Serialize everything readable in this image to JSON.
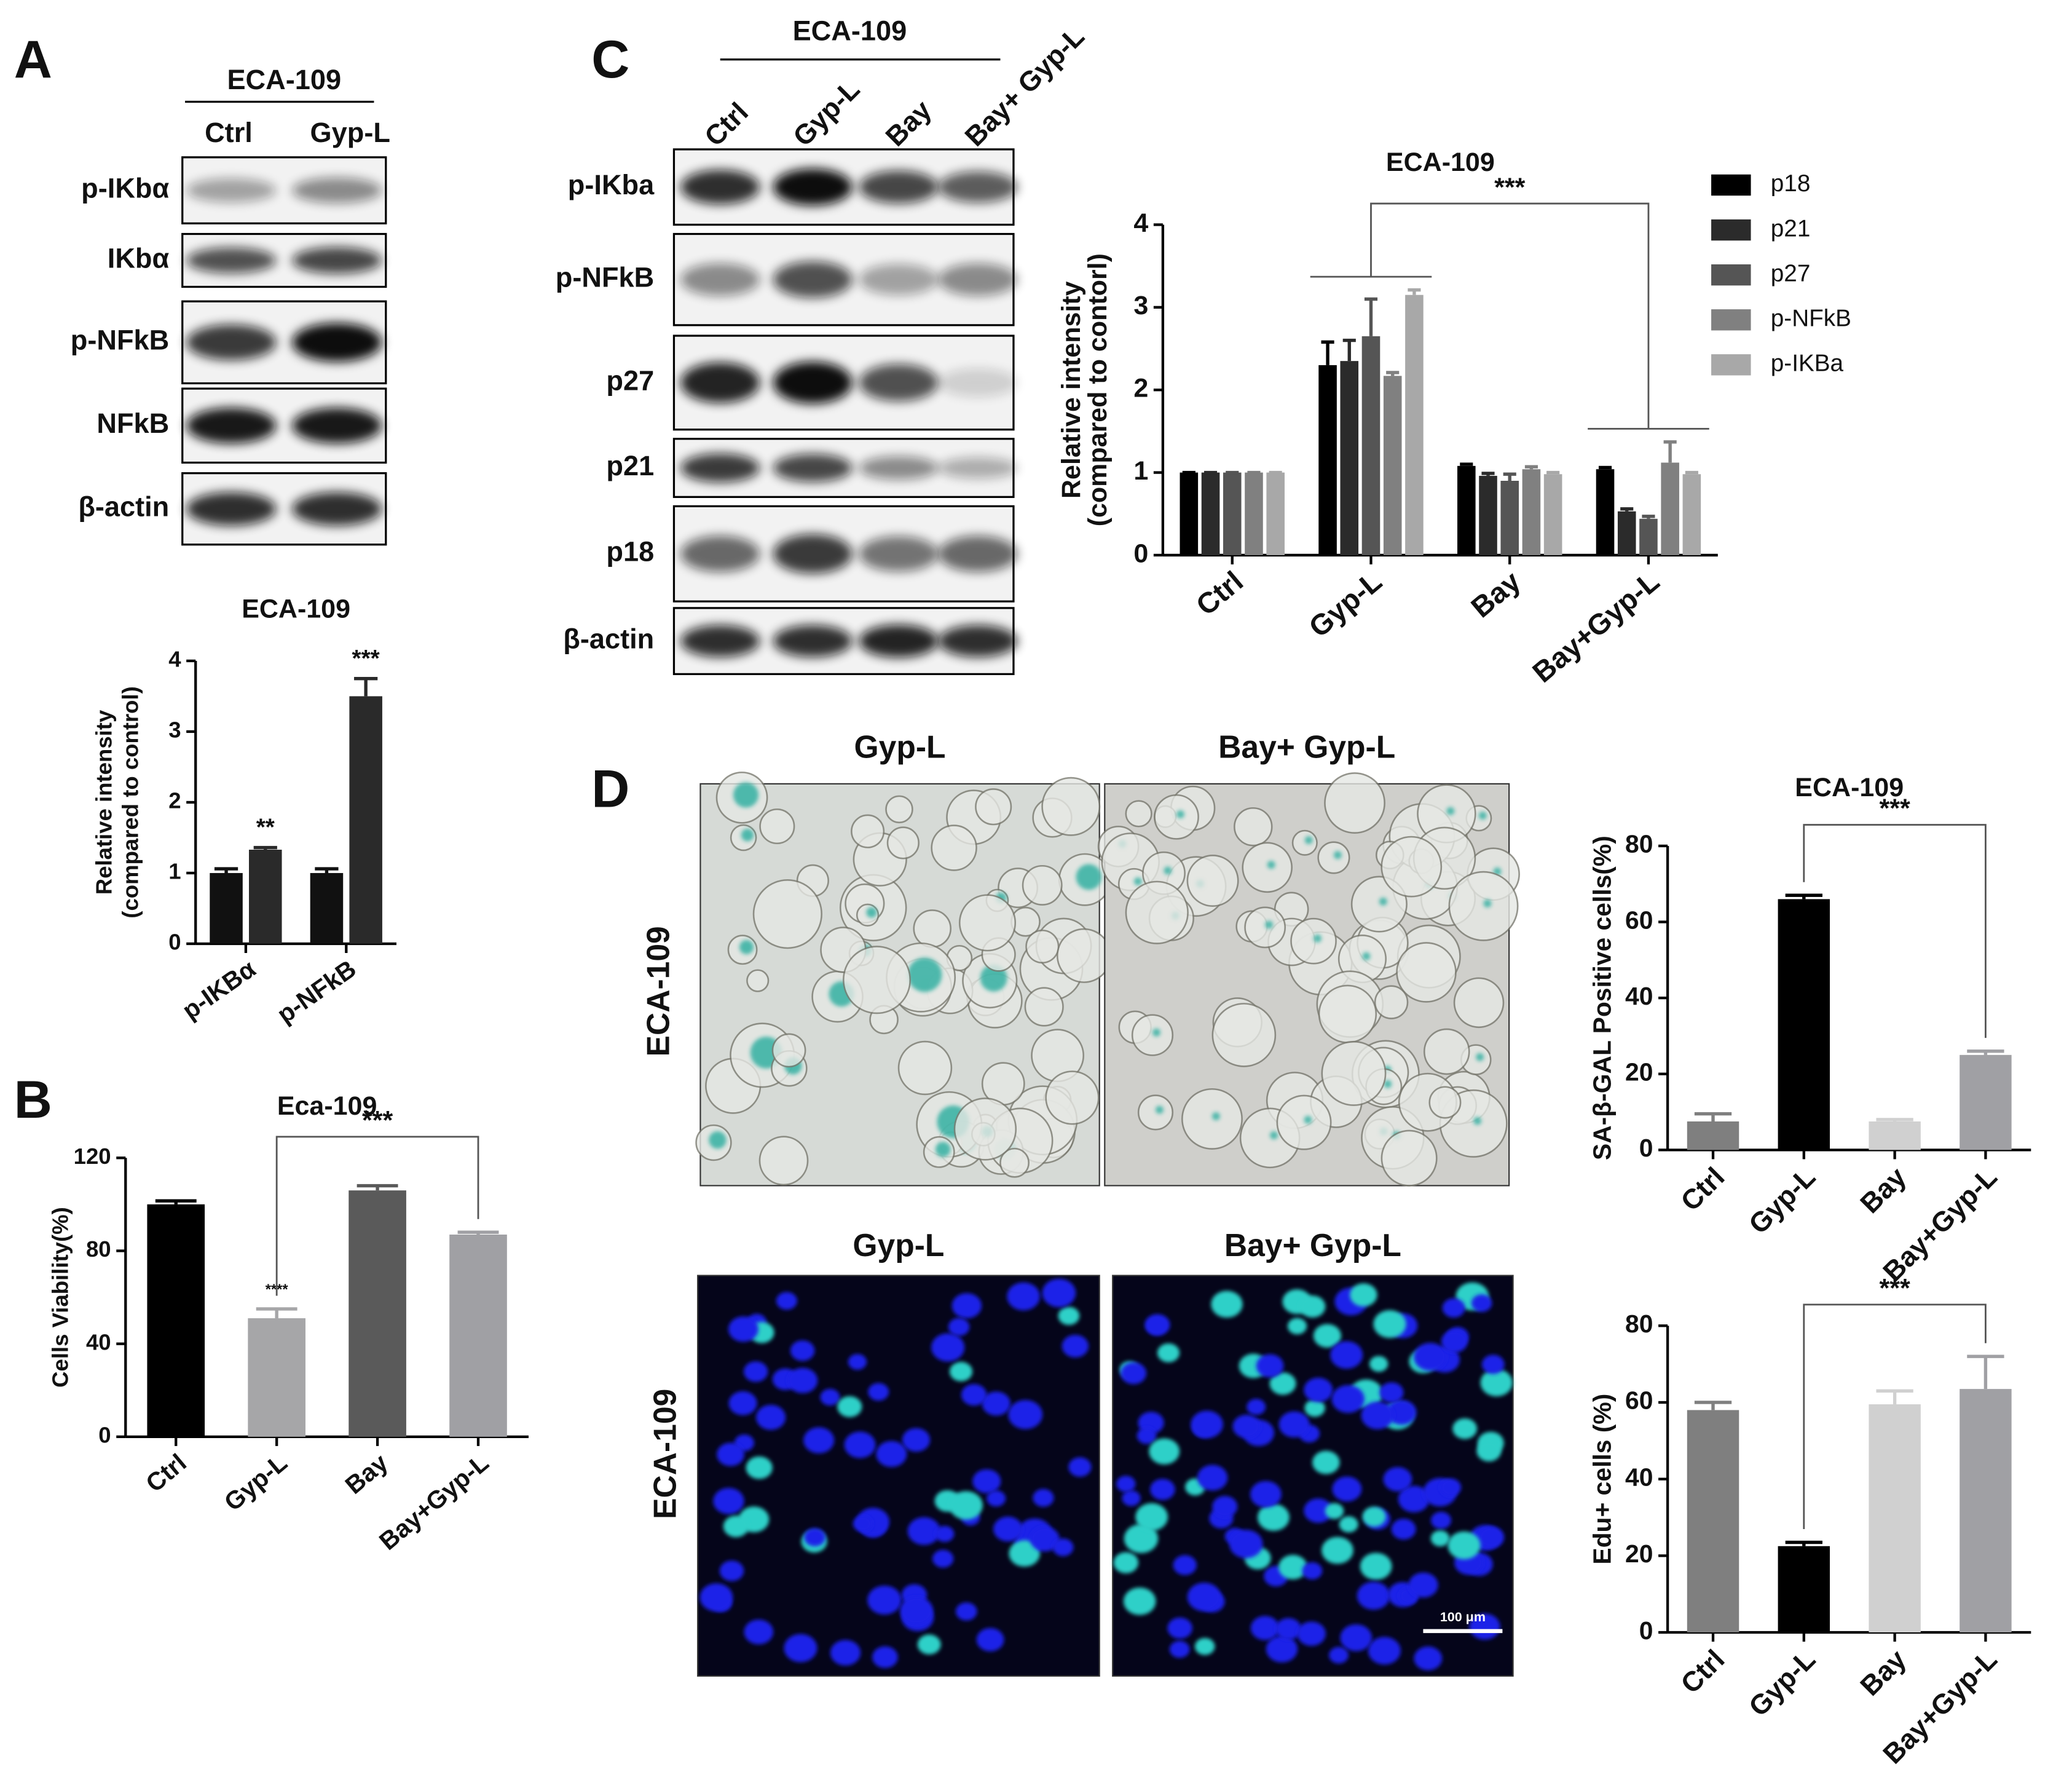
{
  "panels": [
    "A",
    "B",
    "C",
    "D"
  ],
  "blot_a": {
    "cell_line": "ECA-109",
    "lanes": [
      "Ctrl",
      "Gyp-L"
    ],
    "rows": [
      "p-IKbα",
      "IKbα",
      "p-NFkB",
      "NFkB",
      "β-actin"
    ]
  },
  "blot_c": {
    "cell_line": "ECA-109",
    "lanes": [
      "Ctrl",
      "Gyp-L",
      "Bay",
      "Bay+ Gyp-L"
    ],
    "rows": [
      "p-IKba",
      "p-NFkB",
      "p27",
      "p21",
      "p18",
      "β-actin"
    ]
  },
  "micrographs": [
    {
      "row_label": "ECA-109",
      "columns": [
        "Gyp-L",
        "Bay+ Gyp-L"
      ]
    },
    {
      "row_label": "ECA-109",
      "columns": [
        "Gyp-L",
        "Bay+ Gyp-L"
      ],
      "scale_bar": "100 μm"
    }
  ],
  "chart_data": [
    {
      "type": "bar",
      "title": "ECA-109",
      "ylabel": [
        "Relative intensity",
        "(compared to control)"
      ],
      "categories": [
        "p-IKBα",
        "p-NFkB"
      ],
      "series": [
        {
          "color": "#111111",
          "values": [
            1.0,
            1.0
          ],
          "errors": [
            0.06,
            0.06
          ]
        },
        {
          "color": "#2a2a2a",
          "values": [
            1.33,
            3.5
          ],
          "errors": [
            0.03,
            0.25
          ],
          "significance": [
            "**",
            "***"
          ]
        }
      ],
      "ylim": [
        0,
        4
      ],
      "yticks": [
        0,
        1,
        2,
        3,
        4
      ]
    },
    {
      "type": "bar",
      "title": "Eca-109",
      "ylabel": [
        "Cells Viability(%)"
      ],
      "categories": [
        "Ctrl",
        "Gyp-L",
        "Bay",
        "Bay+Gyp-L"
      ],
      "series": [
        {
          "colors": [
            "#000000",
            "#a6a6a8",
            "#5a5a5a",
            "#a0a0a4"
          ],
          "values": [
            100,
            51,
            106,
            87
          ],
          "errors": [
            1.5,
            4,
            2,
            1
          ],
          "significance": [
            null,
            "****",
            null,
            null
          ]
        }
      ],
      "brackets": [
        {
          "label": "***",
          "between": [
            1,
            3
          ]
        }
      ],
      "ylim": [
        0,
        120
      ],
      "yticks": [
        0,
        40,
        80,
        120
      ]
    },
    {
      "type": "bar",
      "title": "ECA-109",
      "ylabel": [
        "Relative intensity",
        "(compared to contorl)"
      ],
      "categories": [
        "Ctrl",
        "Gyp-L",
        "Bay",
        "Bay+Gyp-L"
      ],
      "series": [
        {
          "name": "p18",
          "color": "#000000",
          "values": [
            1,
            2.3,
            1.08,
            1.04
          ],
          "errors": [
            0,
            0.28,
            0.02,
            0.02
          ]
        },
        {
          "name": "p21",
          "color": "#2b2b2b",
          "values": [
            1,
            2.35,
            0.96,
            0.53
          ],
          "errors": [
            0,
            0.25,
            0.03,
            0.03
          ]
        },
        {
          "name": "p27",
          "color": "#555555",
          "values": [
            1,
            2.65,
            0.9,
            0.44
          ],
          "errors": [
            0,
            0.45,
            0.08,
            0.03
          ]
        },
        {
          "name": "p-NFkB",
          "color": "#808080",
          "values": [
            1,
            2.17,
            1.04,
            1.12
          ],
          "errors": [
            0,
            0.04,
            0.03,
            0.25
          ]
        },
        {
          "name": "p-IKBa",
          "color": "#a8a8a8",
          "values": [
            1,
            3.15,
            0.98,
            0.98
          ],
          "errors": [
            0,
            0.06,
            0.02,
            0.02
          ]
        }
      ],
      "brackets": [
        {
          "label": "***",
          "between": [
            1,
            3
          ]
        }
      ],
      "ylim": [
        0,
        4
      ],
      "yticks": [
        0,
        1,
        2,
        3,
        4
      ],
      "legend": "right"
    },
    {
      "type": "bar",
      "title": "ECA-109",
      "ylabel": [
        "SA-β-GAL Positive cells(%)"
      ],
      "categories": [
        "Ctrl",
        "Gyp-L",
        "Bay",
        "Bay+Gyp-L"
      ],
      "series": [
        {
          "colors": [
            "#7f7f7f",
            "#000000",
            "#d0d0d0",
            "#a0a0a4"
          ],
          "values": [
            7.5,
            66,
            7.5,
            25
          ],
          "errors": [
            2,
            1,
            0.5,
            1
          ]
        }
      ],
      "brackets": [
        {
          "label": "***",
          "between": [
            1,
            3
          ]
        }
      ],
      "ylim": [
        0,
        80
      ],
      "yticks": [
        0,
        20,
        40,
        60,
        80
      ]
    },
    {
      "type": "bar",
      "ylabel": [
        "Edu+ cells (%)"
      ],
      "categories": [
        "Ctrl",
        "Gyp-L",
        "Bay",
        "Bay+Gyp-L"
      ],
      "series": [
        {
          "colors": [
            "#7f7f7f",
            "#000000",
            "#d0d0d0",
            "#a0a0a4"
          ],
          "values": [
            58,
            22.5,
            59.5,
            63.5
          ],
          "errors": [
            2,
            1,
            3.5,
            8.5
          ]
        }
      ],
      "brackets": [
        {
          "label": "***",
          "between": [
            1,
            3
          ]
        }
      ],
      "ylim": [
        0,
        80
      ],
      "yticks": [
        0,
        20,
        40,
        60,
        80
      ]
    }
  ]
}
